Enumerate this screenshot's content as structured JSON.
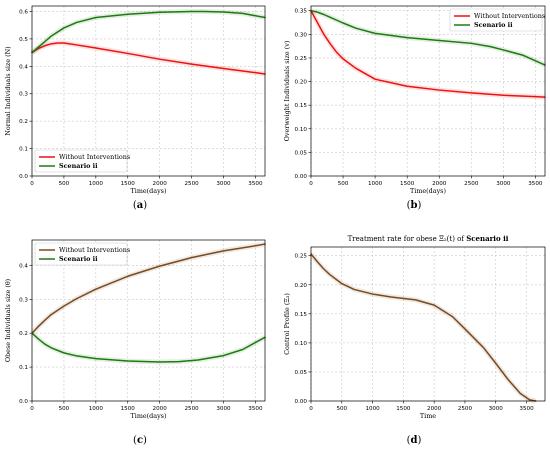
{
  "colors": {
    "red": "#ee1111",
    "green": "#1e7a12",
    "brown": "#7a4a1e",
    "grid": "#c8c8c8"
  },
  "chart_data": [
    {
      "type": "line",
      "caption": "(a)",
      "ylabel": "Normal Individuals size (N)",
      "xlabel": "Time(days)",
      "xlim": [
        0,
        3650
      ],
      "ylim": [
        0,
        0.62
      ],
      "xticks": [
        0,
        500,
        1000,
        1500,
        2000,
        2500,
        3000,
        3500
      ],
      "yticks": [
        0.0,
        0.1,
        0.2,
        0.3,
        0.4,
        0.5,
        0.6
      ],
      "ytick_labels": [
        "0.0",
        "0.1",
        "0.2",
        "0.3",
        "0.4",
        "0.5",
        "0.6"
      ],
      "legend": "lower-left",
      "grid": true,
      "series": [
        {
          "name": "Without Interventions",
          "color": "red",
          "x": [
            0,
            100,
            200,
            300,
            400,
            500,
            700,
            1000,
            1500,
            2000,
            2500,
            3000,
            3500,
            3650
          ],
          "y": [
            0.45,
            0.465,
            0.475,
            0.482,
            0.485,
            0.485,
            0.478,
            0.467,
            0.447,
            0.426,
            0.408,
            0.392,
            0.377,
            0.372
          ]
        },
        {
          "name": "Scenario ii",
          "bold": true,
          "color": "green",
          "x": [
            0,
            100,
            200,
            300,
            500,
            700,
            1000,
            1500,
            2000,
            2500,
            2700,
            3000,
            3300,
            3650
          ],
          "y": [
            0.45,
            0.47,
            0.49,
            0.51,
            0.54,
            0.56,
            0.578,
            0.59,
            0.597,
            0.6,
            0.6,
            0.598,
            0.593,
            0.578
          ]
        }
      ]
    },
    {
      "type": "line",
      "caption": "(b)",
      "ylabel": "Overweight Individuals size (v)",
      "xlabel": "Time(days)",
      "xlim": [
        0,
        3650
      ],
      "ylim": [
        0,
        0.36
      ],
      "xticks": [
        0,
        500,
        1000,
        1500,
        2000,
        2500,
        3000,
        3500
      ],
      "yticks": [
        0.0,
        0.05,
        0.1,
        0.15,
        0.2,
        0.25,
        0.3,
        0.35
      ],
      "ytick_labels": [
        "0.00",
        "0.05",
        "0.10",
        "0.15",
        "0.20",
        "0.25",
        "0.30",
        "0.35"
      ],
      "legend": "upper-right",
      "grid": true,
      "series": [
        {
          "name": "Without Interventions",
          "color": "red",
          "x": [
            0,
            100,
            200,
            300,
            400,
            500,
            700,
            1000,
            1500,
            2000,
            2500,
            3000,
            3500,
            3650
          ],
          "y": [
            0.35,
            0.325,
            0.3,
            0.28,
            0.262,
            0.248,
            0.228,
            0.205,
            0.19,
            0.182,
            0.176,
            0.171,
            0.168,
            0.167
          ]
        },
        {
          "name": "Scenario ii",
          "bold": true,
          "color": "green",
          "x": [
            0,
            100,
            200,
            300,
            500,
            700,
            1000,
            1500,
            2000,
            2500,
            2800,
            3000,
            3300,
            3650
          ],
          "y": [
            0.35,
            0.347,
            0.342,
            0.336,
            0.324,
            0.313,
            0.302,
            0.293,
            0.287,
            0.281,
            0.274,
            0.267,
            0.256,
            0.235
          ]
        }
      ]
    },
    {
      "type": "line",
      "caption": "(c)",
      "ylabel": "Obese Individuals size (θ)",
      "xlabel": "Time(days)",
      "xlim": [
        0,
        3650
      ],
      "ylim": [
        0,
        0.475
      ],
      "xticks": [
        0,
        500,
        1000,
        1500,
        2000,
        2500,
        3000,
        3500
      ],
      "yticks": [
        0.0,
        0.1,
        0.2,
        0.3,
        0.4
      ],
      "ytick_labels": [
        "0.0",
        "0.1",
        "0.2",
        "0.3",
        "0.4"
      ],
      "legend": "upper-left",
      "grid": true,
      "series": [
        {
          "name": "Without Interventions",
          "color": "brown",
          "x": [
            0,
            100,
            200,
            300,
            500,
            700,
            1000,
            1500,
            2000,
            2500,
            3000,
            3500,
            3650
          ],
          "y": [
            0.2,
            0.22,
            0.238,
            0.255,
            0.28,
            0.302,
            0.33,
            0.368,
            0.398,
            0.423,
            0.443,
            0.458,
            0.463
          ]
        },
        {
          "name": "Scenario ii",
          "bold": true,
          "color": "green",
          "x": [
            0,
            100,
            200,
            300,
            500,
            700,
            1000,
            1500,
            2000,
            2300,
            2600,
            3000,
            3300,
            3650
          ],
          "y": [
            0.2,
            0.183,
            0.168,
            0.157,
            0.142,
            0.133,
            0.125,
            0.118,
            0.115,
            0.116,
            0.121,
            0.134,
            0.152,
            0.188
          ]
        }
      ]
    },
    {
      "type": "line",
      "caption": "(d)",
      "title": "Treatment rate for obese Ξ₂(t) of Scenario ii",
      "ylabel": "Control Profile (Ξ₂)",
      "xlabel": "Time",
      "xlim": [
        0,
        3800
      ],
      "ylim": [
        0,
        0.265
      ],
      "xticks": [
        0,
        500,
        1000,
        1500,
        2000,
        2500,
        3000,
        3500
      ],
      "yticks": [
        0.0,
        0.05,
        0.1,
        0.15,
        0.2,
        0.25
      ],
      "ytick_labels": [
        "0.00",
        "0.05",
        "0.10",
        "0.15",
        "0.20",
        "0.25"
      ],
      "legend": "none",
      "grid": true,
      "series": [
        {
          "color": "brown",
          "x": [
            0,
            100,
            200,
            300,
            500,
            700,
            1000,
            1300,
            1700,
            2000,
            2300,
            2500,
            2800,
            3000,
            3200,
            3400,
            3550,
            3650
          ],
          "y": [
            0.253,
            0.24,
            0.228,
            0.218,
            0.202,
            0.192,
            0.184,
            0.179,
            0.174,
            0.165,
            0.145,
            0.124,
            0.092,
            0.065,
            0.037,
            0.013,
            0.002,
            0.0
          ]
        }
      ]
    }
  ]
}
